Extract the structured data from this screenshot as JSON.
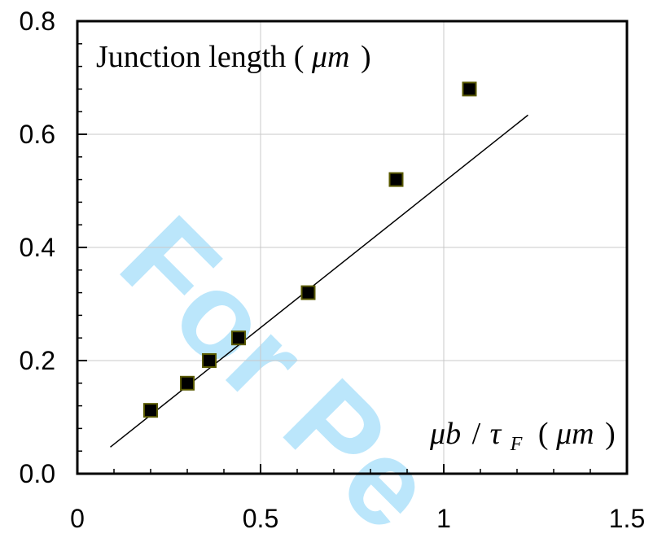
{
  "chart_data": {
    "type": "scatter",
    "title": "",
    "ylabel": "Junction length (μm)",
    "ylabel_parts": {
      "prefix": "Junction length (",
      "unit": "μm",
      "suffix": ")"
    },
    "xlabel": "μb/τF (μm)",
    "xlabel_parts": {
      "mu_b": "μb",
      "slash": "/",
      "tau": "τ",
      "tau_sub": "F",
      "unit_open": "(",
      "unit": "μm",
      "unit_close": ")"
    },
    "xlim": [
      0,
      1.5
    ],
    "ylim": [
      0,
      0.8
    ],
    "x_ticks": [
      0,
      0.5,
      1,
      1.5
    ],
    "x_tick_labels": [
      "0",
      "0.5",
      "1",
      "1.5"
    ],
    "y_ticks": [
      0,
      0.2,
      0.4,
      0.6,
      0.8
    ],
    "y_tick_labels": [
      "0.0",
      "0.2",
      "0.4",
      "0.6",
      "0.8"
    ],
    "grid": true,
    "legend": "none",
    "series": [
      {
        "marker": "square",
        "color": "#000000",
        "x": [
          0.2,
          0.3,
          0.36,
          0.44,
          0.63,
          0.87,
          1.07
        ],
        "y": [
          0.112,
          0.16,
          0.2,
          0.24,
          0.32,
          0.52,
          0.68
        ]
      }
    ],
    "fit_line": {
      "color": "#000000",
      "x": [
        0.09,
        1.23
      ],
      "y": [
        0.047,
        0.634
      ]
    }
  },
  "watermark": {
    "text": "For Pe",
    "color": "#33b5f5"
  }
}
